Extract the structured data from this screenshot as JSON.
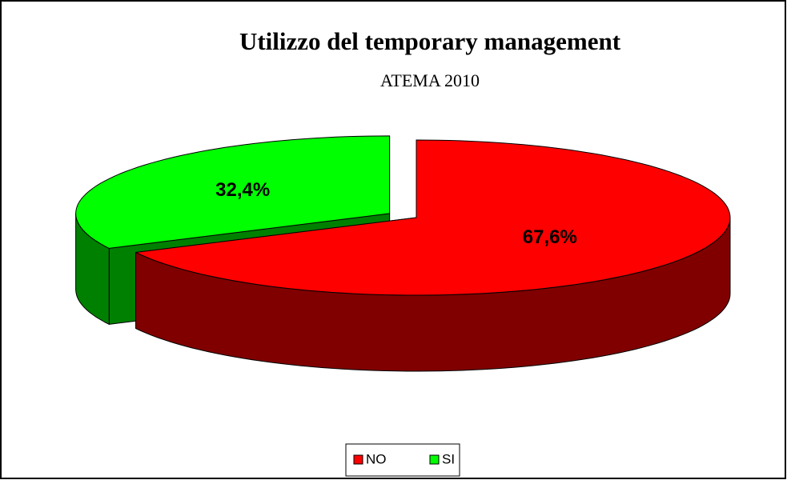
{
  "chart_data": {
    "type": "pie3d",
    "title": "Utilizzo del temporary management",
    "subtitle": "ATEMA 2010",
    "categories": [
      "NO",
      "SI"
    ],
    "values": [
      67.6,
      32.4
    ],
    "value_labels": [
      "67,6%",
      "32,4%"
    ],
    "colors": [
      "#ff0000",
      "#00ff00"
    ],
    "side_colors": [
      "#800000",
      "#008000"
    ],
    "explode": [
      0,
      0.1
    ],
    "legend": "bottom"
  }
}
